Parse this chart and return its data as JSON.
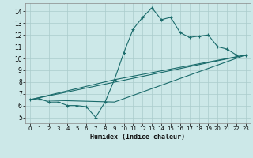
{
  "title": "",
  "xlabel": "Humidex (Indice chaleur)",
  "bg_color": "#cce8e8",
  "grid_color": "#aacccc",
  "line_color": "#1a6b6b",
  "xlim": [
    -0.5,
    23.5
  ],
  "ylim": [
    4.5,
    14.7
  ],
  "xticks": [
    0,
    1,
    2,
    3,
    4,
    5,
    6,
    7,
    8,
    9,
    10,
    11,
    12,
    13,
    14,
    15,
    16,
    17,
    18,
    19,
    20,
    21,
    22,
    23
  ],
  "yticks": [
    5,
    6,
    7,
    8,
    9,
    10,
    11,
    12,
    13,
    14
  ],
  "series1_x": [
    0,
    1,
    2,
    3,
    4,
    5,
    6,
    7,
    8,
    9,
    10,
    11,
    12,
    13,
    14,
    15,
    16,
    17,
    18,
    19,
    20,
    21,
    22,
    23
  ],
  "series1_y": [
    6.5,
    6.6,
    6.3,
    6.3,
    6.0,
    6.0,
    5.9,
    5.0,
    6.3,
    8.2,
    10.5,
    12.5,
    13.5,
    14.3,
    13.3,
    13.5,
    12.2,
    11.8,
    11.9,
    12.0,
    11.0,
    10.8,
    10.3,
    10.3
  ],
  "series2_x": [
    0,
    9,
    23
  ],
  "series2_y": [
    6.5,
    8.2,
    10.3
  ],
  "series3_x": [
    0,
    9,
    23
  ],
  "series3_y": [
    6.5,
    6.3,
    10.3
  ],
  "series4_x": [
    0,
    23
  ],
  "series4_y": [
    6.5,
    10.3
  ]
}
